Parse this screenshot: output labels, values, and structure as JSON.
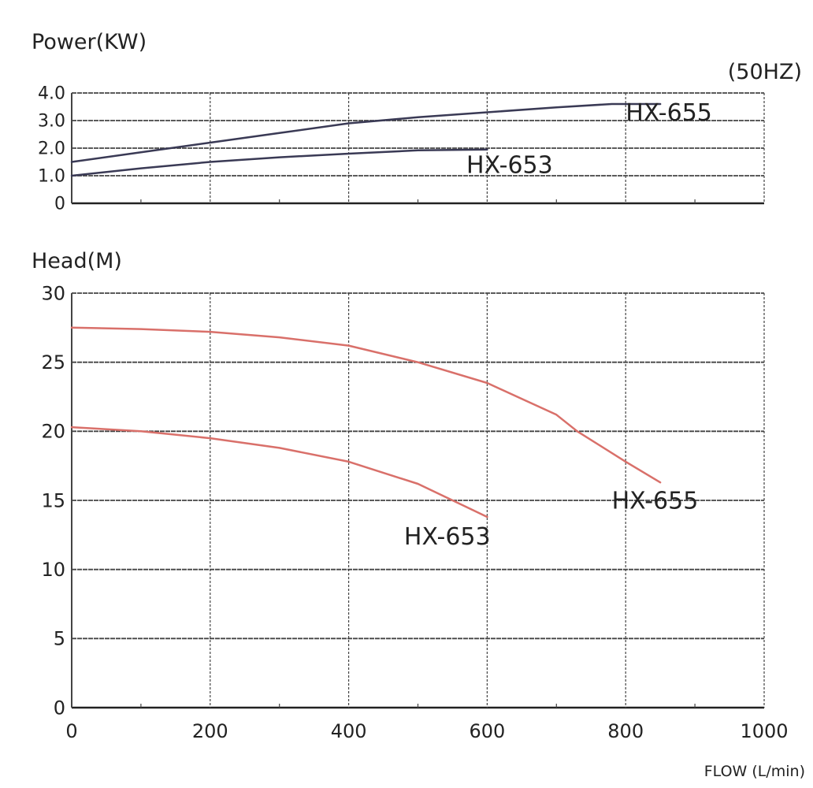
{
  "chart_data": [
    {
      "type": "line",
      "title": "Power(KW)",
      "note": "(50HZ)",
      "xlabel": "",
      "ylabel": "Power(KW)",
      "xlim": [
        0,
        1000
      ],
      "ylim": [
        0,
        4
      ],
      "yticks": [
        {
          "v": 0,
          "label": "0"
        },
        {
          "v": 1,
          "label": "1.0"
        },
        {
          "v": 2,
          "label": "2.0"
        },
        {
          "v": 3,
          "label": "3.0"
        },
        {
          "v": 4,
          "label": "4.0"
        }
      ],
      "xgrid": [
        200,
        400,
        600,
        800,
        1000
      ],
      "grid": true,
      "series": [
        {
          "name": "HX-655",
          "color": "#3a3a55",
          "x": [
            0,
            100,
            200,
            300,
            400,
            500,
            600,
            700,
            780,
            850
          ],
          "y": [
            1.5,
            1.85,
            2.2,
            2.55,
            2.9,
            3.12,
            3.3,
            3.48,
            3.6,
            3.6
          ],
          "label_at": [
            800,
            3.0
          ]
        },
        {
          "name": "HX-653",
          "color": "#3a3a55",
          "x": [
            0,
            100,
            200,
            300,
            400,
            500,
            600
          ],
          "y": [
            1.0,
            1.27,
            1.5,
            1.67,
            1.8,
            1.92,
            1.95
          ],
          "label_at": [
            570,
            1.1
          ]
        }
      ]
    },
    {
      "type": "line",
      "title": "Head(M)",
      "xlabel": "FLOW (L/min)",
      "ylabel": "Head(M)",
      "xlim": [
        0,
        1000
      ],
      "ylim": [
        0,
        30
      ],
      "yticks": [
        {
          "v": 0,
          "label": "0"
        },
        {
          "v": 5,
          "label": "5"
        },
        {
          "v": 10,
          "label": "10"
        },
        {
          "v": 15,
          "label": "15"
        },
        {
          "v": 20,
          "label": "20"
        },
        {
          "v": 25,
          "label": "25"
        },
        {
          "v": 30,
          "label": "30"
        }
      ],
      "xticks": [
        {
          "v": 0,
          "label": "0"
        },
        {
          "v": 200,
          "label": "200"
        },
        {
          "v": 400,
          "label": "400"
        },
        {
          "v": 600,
          "label": "600"
        },
        {
          "v": 800,
          "label": "800"
        },
        {
          "v": 1000,
          "label": "1000"
        }
      ],
      "grid": true,
      "series": [
        {
          "name": "HX-655",
          "color": "#d9706a",
          "x": [
            0,
            100,
            200,
            300,
            400,
            500,
            600,
            700,
            730,
            800,
            850
          ],
          "y": [
            27.5,
            27.4,
            27.2,
            26.8,
            26.2,
            25.0,
            23.5,
            21.2,
            20.0,
            17.8,
            16.3
          ],
          "label_at": [
            780,
            14.4
          ]
        },
        {
          "name": "HX-653",
          "color": "#d9706a",
          "x": [
            0,
            100,
            200,
            300,
            400,
            500,
            550,
            600
          ],
          "y": [
            20.3,
            20.0,
            19.5,
            18.8,
            17.8,
            16.2,
            15.0,
            13.8
          ],
          "label_at": [
            480,
            11.8
          ]
        }
      ]
    }
  ]
}
